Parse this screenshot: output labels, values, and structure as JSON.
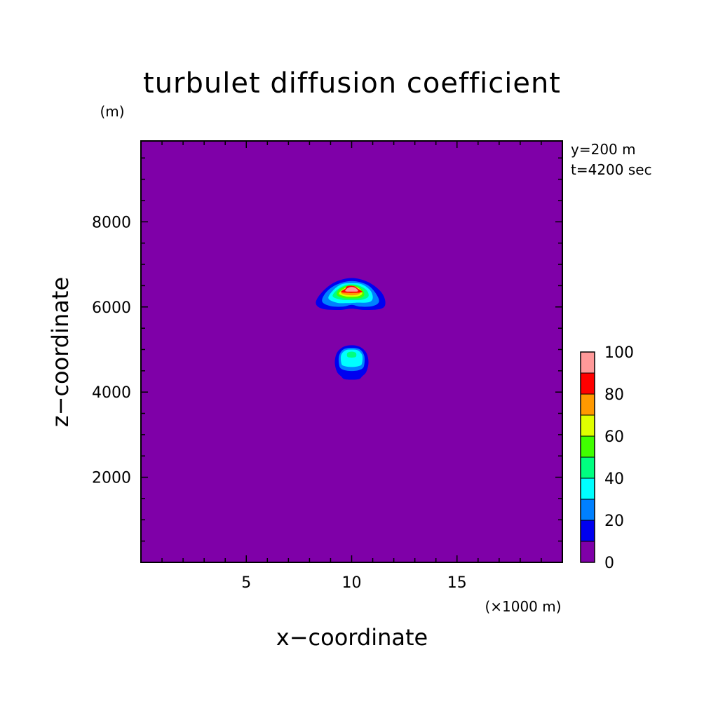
{
  "chart_data": {
    "type": "heatmap",
    "title": "turbulet diffusion coefficient",
    "xlabel": "x−coordinate",
    "ylabel": "z−coordinate",
    "x_unit": "(×1000 m)",
    "y_unit": "(m)",
    "annotations": [
      "y=200 m",
      "t=4200 sec"
    ],
    "xlim": [
      0,
      20
    ],
    "ylim": [
      0,
      9900
    ],
    "x_ticks": [
      5,
      10,
      15
    ],
    "y_ticks": [
      2000,
      4000,
      6000,
      8000
    ],
    "grid": false,
    "colorbar": {
      "ticks": [
        0,
        20,
        40,
        60,
        80,
        100
      ],
      "levels": [
        0,
        10,
        20,
        30,
        40,
        50,
        60,
        70,
        80,
        90,
        100
      ],
      "colors": [
        "#7f00a8",
        "#0000f0",
        "#0080ff",
        "#00ffff",
        "#00ff80",
        "#40ff00",
        "#e0ff00",
        "#ff9900",
        "#ff0000",
        "#ff9999"
      ]
    },
    "background_value": 0,
    "features": [
      {
        "name": "upper plume",
        "center": [
          10.0,
          6300
        ],
        "layers": [
          {
            "level": 10,
            "contour": [
              [
                8.3,
                6100
              ],
              [
                8.6,
                5960
              ],
              [
                9.4,
                5930
              ],
              [
                10.0,
                5960
              ],
              [
                10.6,
                5930
              ],
              [
                11.4,
                5960
              ],
              [
                11.6,
                6100
              ],
              [
                11.4,
                6350
              ],
              [
                10.8,
                6580
              ],
              [
                10.0,
                6680
              ],
              [
                9.2,
                6580
              ],
              [
                8.6,
                6350
              ]
            ]
          },
          {
            "level": 20,
            "contour": [
              [
                8.6,
                6130
              ],
              [
                9.0,
                6020
              ],
              [
                9.6,
                6010
              ],
              [
                10.0,
                6050
              ],
              [
                10.4,
                6010
              ],
              [
                11.0,
                6020
              ],
              [
                11.3,
                6130
              ],
              [
                11.1,
                6350
              ],
              [
                10.7,
                6530
              ],
              [
                10.0,
                6610
              ],
              [
                9.3,
                6530
              ],
              [
                8.8,
                6350
              ]
            ]
          },
          {
            "level": 30,
            "contour": [
              [
                8.9,
                6200
              ],
              [
                9.3,
                6100
              ],
              [
                9.8,
                6090
              ],
              [
                10.2,
                6100
              ],
              [
                10.8,
                6110
              ],
              [
                11.0,
                6200
              ],
              [
                10.9,
                6380
              ],
              [
                10.5,
                6530
              ],
              [
                10.0,
                6560
              ],
              [
                9.5,
                6530
              ],
              [
                9.1,
                6380
              ]
            ]
          },
          {
            "level": 40,
            "contour": [
              [
                9.1,
                6250
              ],
              [
                9.5,
                6170
              ],
              [
                10.0,
                6160
              ],
              [
                10.5,
                6170
              ],
              [
                10.8,
                6250
              ],
              [
                10.7,
                6400
              ],
              [
                10.3,
                6510
              ],
              [
                10.0,
                6530
              ],
              [
                9.7,
                6510
              ],
              [
                9.3,
                6400
              ]
            ]
          },
          {
            "level": 50,
            "contour": [
              [
                9.3,
                6280
              ],
              [
                9.6,
                6210
              ],
              [
                10.0,
                6200
              ],
              [
                10.4,
                6210
              ],
              [
                10.6,
                6280
              ],
              [
                10.5,
                6410
              ],
              [
                10.2,
                6500
              ],
              [
                9.8,
                6500
              ],
              [
                9.4,
                6410
              ]
            ]
          },
          {
            "level": 60,
            "contour": [
              [
                9.4,
                6310
              ],
              [
                9.7,
                6250
              ],
              [
                10.0,
                6240
              ],
              [
                10.3,
                6250
              ],
              [
                10.5,
                6310
              ],
              [
                10.4,
                6420
              ],
              [
                10.1,
                6490
              ],
              [
                9.9,
                6490
              ],
              [
                9.6,
                6420
              ]
            ]
          },
          {
            "level": 70,
            "contour": [
              [
                9.5,
                6330
              ],
              [
                9.8,
                6280
              ],
              [
                10.2,
                6280
              ],
              [
                10.4,
                6330
              ],
              [
                10.3,
                6420
              ],
              [
                10.1,
                6480
              ],
              [
                9.9,
                6480
              ],
              [
                9.7,
                6420
              ]
            ]
          },
          {
            "level": 80,
            "contour": [
              [
                9.5,
                6350
              ],
              [
                10.0,
                6330
              ],
              [
                10.5,
                6350
              ],
              [
                10.3,
                6430
              ],
              [
                10.1,
                6490
              ],
              [
                9.8,
                6490
              ],
              [
                9.7,
                6430
              ]
            ]
          },
          {
            "level": 90,
            "contour": [
              [
                9.7,
                6370
              ],
              [
                10.0,
                6360
              ],
              [
                10.3,
                6370
              ],
              [
                10.2,
                6440
              ],
              [
                10.0,
                6470
              ],
              [
                9.8,
                6440
              ]
            ]
          }
        ]
      },
      {
        "name": "lower plume",
        "center": [
          10.0,
          4800
        ],
        "layers": [
          {
            "level": 10,
            "contour": [
              [
                9.3,
                4480
              ],
              [
                9.5,
                4370
              ],
              [
                9.7,
                4300
              ],
              [
                10.3,
                4300
              ],
              [
                10.5,
                4370
              ],
              [
                10.7,
                4480
              ],
              [
                10.8,
                4700
              ],
              [
                10.7,
                4920
              ],
              [
                10.4,
                5060
              ],
              [
                10.0,
                5100
              ],
              [
                9.6,
                5060
              ],
              [
                9.3,
                4920
              ],
              [
                9.2,
                4700
              ]
            ]
          },
          {
            "level": 20,
            "contour": [
              [
                9.4,
                4650
              ],
              [
                9.5,
                4550
              ],
              [
                9.8,
                4500
              ],
              [
                10.2,
                4500
              ],
              [
                10.5,
                4550
              ],
              [
                10.6,
                4650
              ],
              [
                10.6,
                4850
              ],
              [
                10.4,
                5000
              ],
              [
                10.0,
                5040
              ],
              [
                9.6,
                5000
              ],
              [
                9.4,
                4850
              ]
            ]
          },
          {
            "level": 30,
            "contour": [
              [
                9.5,
                4700
              ],
              [
                9.6,
                4620
              ],
              [
                10.0,
                4590
              ],
              [
                10.4,
                4620
              ],
              [
                10.5,
                4700
              ],
              [
                10.5,
                4870
              ],
              [
                10.3,
                4980
              ],
              [
                10.0,
                5000
              ],
              [
                9.7,
                4980
              ],
              [
                9.5,
                4870
              ]
            ]
          },
          {
            "level": 40,
            "contour": [
              [
                9.8,
                4830
              ],
              [
                10.0,
                4810
              ],
              [
                10.2,
                4830
              ],
              [
                10.2,
                4920
              ],
              [
                10.0,
                4950
              ],
              [
                9.8,
                4920
              ]
            ]
          }
        ]
      }
    ]
  }
}
